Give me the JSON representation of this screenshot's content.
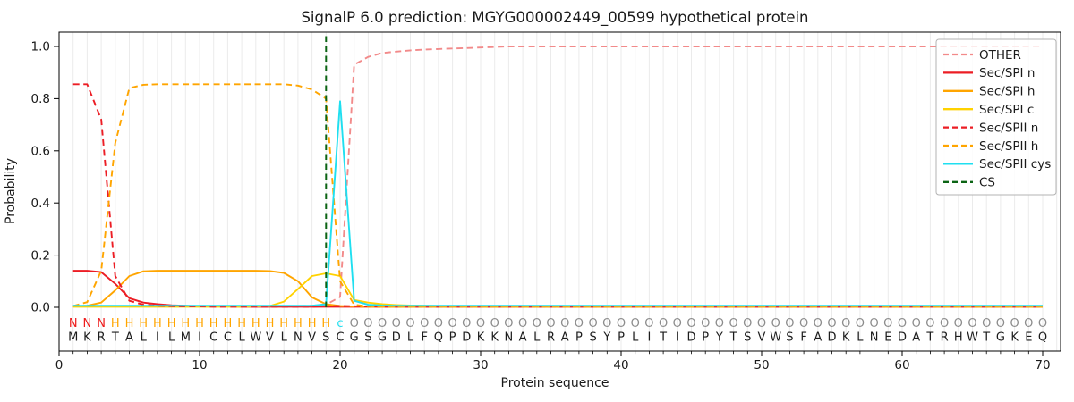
{
  "chart_data": {
    "type": "line",
    "title": "SignalP 6.0 prediction: MGYG000002449_00599 hypothetical protein",
    "xlabel": "Protein sequence",
    "ylabel": "Probability",
    "x_ticks": [
      0,
      10,
      20,
      30,
      40,
      50,
      60,
      70
    ],
    "y_ticks": [
      "0.0",
      "0.2",
      "0.4",
      "0.6",
      "0.8",
      "1.0"
    ],
    "xlim": [
      0,
      71.3
    ],
    "ylim": [
      -0.17,
      1.05
    ],
    "grid": "vertical gridline per residue",
    "legend_position": "upper right",
    "cs_position": 19,
    "cs_color": "#0b6414",
    "sequence": "MKRTALILMICCLWVLNVSCGSGDLFQPDKKNALRAPSYPLITIDPYTSVWSFADKLNEDATRHWTGKEQ",
    "annotation": "NNNHHHHHHHHHHHHHHHHcOOOOOOOOOOOOOOOOOOOOOOOOOOOOOOOOOOOOOOOOOOOOOOOOOO",
    "annotation_colors": {
      "N": "#ee1c1c",
      "H": "#ffa500",
      "c": "#1fdff0",
      "O": "#8c8c8c"
    },
    "sequence_color": "#1c1c1c",
    "series": [
      {
        "name": "OTHER",
        "color": "#f28a8a",
        "dash": true,
        "values": [
          0.004,
          0.004,
          0.004,
          0.004,
          0.004,
          0.004,
          0.004,
          0.004,
          0.004,
          0.004,
          0.004,
          0.004,
          0.004,
          0.004,
          0.004,
          0.004,
          0.005,
          0.006,
          0.01,
          0.04,
          0.93,
          0.96,
          0.975,
          0.98,
          0.985,
          0.988,
          0.99,
          0.992,
          0.994,
          0.996,
          0.998,
          1,
          1,
          1,
          1,
          1,
          1,
          1,
          1,
          1,
          1,
          1,
          1,
          1,
          1,
          1,
          1,
          1,
          1,
          1,
          1,
          1,
          1,
          1,
          1,
          1,
          1,
          1,
          1,
          1,
          1,
          1,
          1,
          1,
          1,
          1,
          1,
          1,
          1,
          1
        ]
      },
      {
        "name": "Sec/SPI n",
        "color": "#ec1d24",
        "dash": false,
        "values": [
          0.14,
          0.14,
          0.135,
          0.09,
          0.035,
          0.018,
          0.012,
          0.008,
          0.006,
          0.004,
          0.003,
          0.003,
          0.002,
          0.002,
          0.002,
          0.002,
          0.002,
          0.002,
          0.002,
          0.002,
          0.002,
          0.002,
          0.002,
          0.002,
          0.002,
          0.002,
          0.002,
          0.002,
          0.002,
          0.002,
          0.002,
          0.002,
          0.002,
          0.002,
          0.002,
          0.002,
          0.002,
          0.002,
          0.002,
          0.002,
          0.002,
          0.002,
          0.002,
          0.002,
          0.002,
          0.002,
          0.002,
          0.002,
          0.002,
          0.002,
          0.002,
          0.002,
          0.002,
          0.002,
          0.002,
          0.002,
          0.002,
          0.002,
          0.002,
          0.002,
          0.002,
          0.002,
          0.002,
          0.002,
          0.002,
          0.002,
          0.002,
          0.002,
          0.002,
          0.002
        ]
      },
      {
        "name": "Sec/SPI h",
        "color": "#ffa500",
        "dash": false,
        "values": [
          0.004,
          0.006,
          0.018,
          0.065,
          0.12,
          0.138,
          0.14,
          0.14,
          0.14,
          0.14,
          0.14,
          0.14,
          0.14,
          0.14,
          0.139,
          0.132,
          0.1,
          0.038,
          0.012,
          0.005,
          0.003,
          0.002,
          0.002,
          0.002,
          0.002,
          0.002,
          0.002,
          0.002,
          0.002,
          0.002,
          0.002,
          0.002,
          0.002,
          0.002,
          0.002,
          0.002,
          0.002,
          0.002,
          0.002,
          0.002,
          0.002,
          0.002,
          0.002,
          0.002,
          0.002,
          0.002,
          0.002,
          0.002,
          0.002,
          0.002,
          0.002,
          0.002,
          0.002,
          0.002,
          0.002,
          0.002,
          0.002,
          0.002,
          0.002,
          0.002,
          0.002,
          0.002,
          0.002,
          0.002,
          0.002,
          0.002,
          0.002,
          0.002,
          0.002,
          0.002
        ]
      },
      {
        "name": "Sec/SPI c",
        "color": "#ffd200",
        "dash": false,
        "values": [
          0.002,
          0.002,
          0.002,
          0.002,
          0.002,
          0.002,
          0.002,
          0.002,
          0.002,
          0.002,
          0.002,
          0.002,
          0.002,
          0.003,
          0.005,
          0.022,
          0.07,
          0.12,
          0.13,
          0.12,
          0.028,
          0.018,
          0.012,
          0.009,
          0.007,
          0.006,
          0.005,
          0.005,
          0.004,
          0.004,
          0.004,
          0.004,
          0.004,
          0.004,
          0.004,
          0.004,
          0.004,
          0.004,
          0.004,
          0.004,
          0.004,
          0.004,
          0.004,
          0.004,
          0.004,
          0.004,
          0.004,
          0.004,
          0.004,
          0.004,
          0.004,
          0.004,
          0.004,
          0.004,
          0.004,
          0.004,
          0.004,
          0.004,
          0.004,
          0.004,
          0.004,
          0.004,
          0.004,
          0.004,
          0.004,
          0.004,
          0.004,
          0.004,
          0.004,
          0.004
        ]
      },
      {
        "name": "Sec/SPII n",
        "color": "#ec1d24",
        "dash": true,
        "values": [
          0.855,
          0.855,
          0.72,
          0.12,
          0.025,
          0.01,
          0.006,
          0.004,
          0.003,
          0.003,
          0.002,
          0.002,
          0.002,
          0.002,
          0.002,
          0.002,
          0.002,
          0.002,
          0.004,
          0.005,
          0.004,
          0.003,
          0.002,
          0.002,
          0.002,
          0.002,
          0.002,
          0.002,
          0.002,
          0.002,
          0.002,
          0.002,
          0.002,
          0.002,
          0.002,
          0.002,
          0.002,
          0.002,
          0.002,
          0.002,
          0.002,
          0.002,
          0.002,
          0.002,
          0.002,
          0.002,
          0.002,
          0.002,
          0.002,
          0.002,
          0.002,
          0.002,
          0.002,
          0.002,
          0.002,
          0.002,
          0.002,
          0.002,
          0.002,
          0.002,
          0.002,
          0.002,
          0.002,
          0.002,
          0.002,
          0.002,
          0.002,
          0.002,
          0.002,
          0.002
        ]
      },
      {
        "name": "Sec/SPII h",
        "color": "#ffa500",
        "dash": true,
        "values": [
          0.005,
          0.02,
          0.14,
          0.63,
          0.84,
          0.853,
          0.855,
          0.855,
          0.855,
          0.855,
          0.855,
          0.855,
          0.855,
          0.855,
          0.855,
          0.855,
          0.85,
          0.835,
          0.8,
          0.1,
          0.01,
          0.004,
          0.002,
          0.002,
          0.002,
          0.002,
          0.002,
          0.002,
          0.002,
          0.002,
          0.002,
          0.002,
          0.002,
          0.002,
          0.002,
          0.002,
          0.002,
          0.002,
          0.002,
          0.002,
          0.002,
          0.002,
          0.002,
          0.002,
          0.002,
          0.002,
          0.002,
          0.002,
          0.002,
          0.002,
          0.002,
          0.002,
          0.002,
          0.002,
          0.002,
          0.002,
          0.002,
          0.002,
          0.002,
          0.002,
          0.002,
          0.002,
          0.002,
          0.002,
          0.002,
          0.002,
          0.002,
          0.002,
          0.002,
          0.002
        ]
      },
      {
        "name": "Sec/SPII cys",
        "color": "#1fdff0",
        "dash": false,
        "values": [
          0.006,
          0.006,
          0.006,
          0.006,
          0.006,
          0.006,
          0.006,
          0.006,
          0.006,
          0.006,
          0.006,
          0.006,
          0.006,
          0.006,
          0.006,
          0.006,
          0.006,
          0.006,
          0.012,
          0.79,
          0.025,
          0.01,
          0.007,
          0.006,
          0.006,
          0.006,
          0.006,
          0.006,
          0.006,
          0.006,
          0.006,
          0.006,
          0.006,
          0.006,
          0.006,
          0.006,
          0.006,
          0.006,
          0.006,
          0.006,
          0.006,
          0.006,
          0.006,
          0.006,
          0.006,
          0.006,
          0.006,
          0.006,
          0.006,
          0.006,
          0.006,
          0.006,
          0.006,
          0.006,
          0.006,
          0.006,
          0.006,
          0.006,
          0.006,
          0.006,
          0.006,
          0.006,
          0.006,
          0.006,
          0.006,
          0.006,
          0.006,
          0.006,
          0.006,
          0.006
        ]
      }
    ],
    "legend": [
      {
        "label": "OTHER",
        "color": "#f28a8a",
        "dash": true
      },
      {
        "label": "Sec/SPI n",
        "color": "#ec1d24",
        "dash": false
      },
      {
        "label": "Sec/SPI h",
        "color": "#ffa500",
        "dash": false
      },
      {
        "label": "Sec/SPI c",
        "color": "#ffd200",
        "dash": false
      },
      {
        "label": "Sec/SPII n",
        "color": "#ec1d24",
        "dash": true
      },
      {
        "label": "Sec/SPII h",
        "color": "#ffa500",
        "dash": true
      },
      {
        "label": "Sec/SPII cys",
        "color": "#1fdff0",
        "dash": false
      },
      {
        "label": "CS",
        "color": "#0b6414",
        "dash": true
      }
    ]
  }
}
